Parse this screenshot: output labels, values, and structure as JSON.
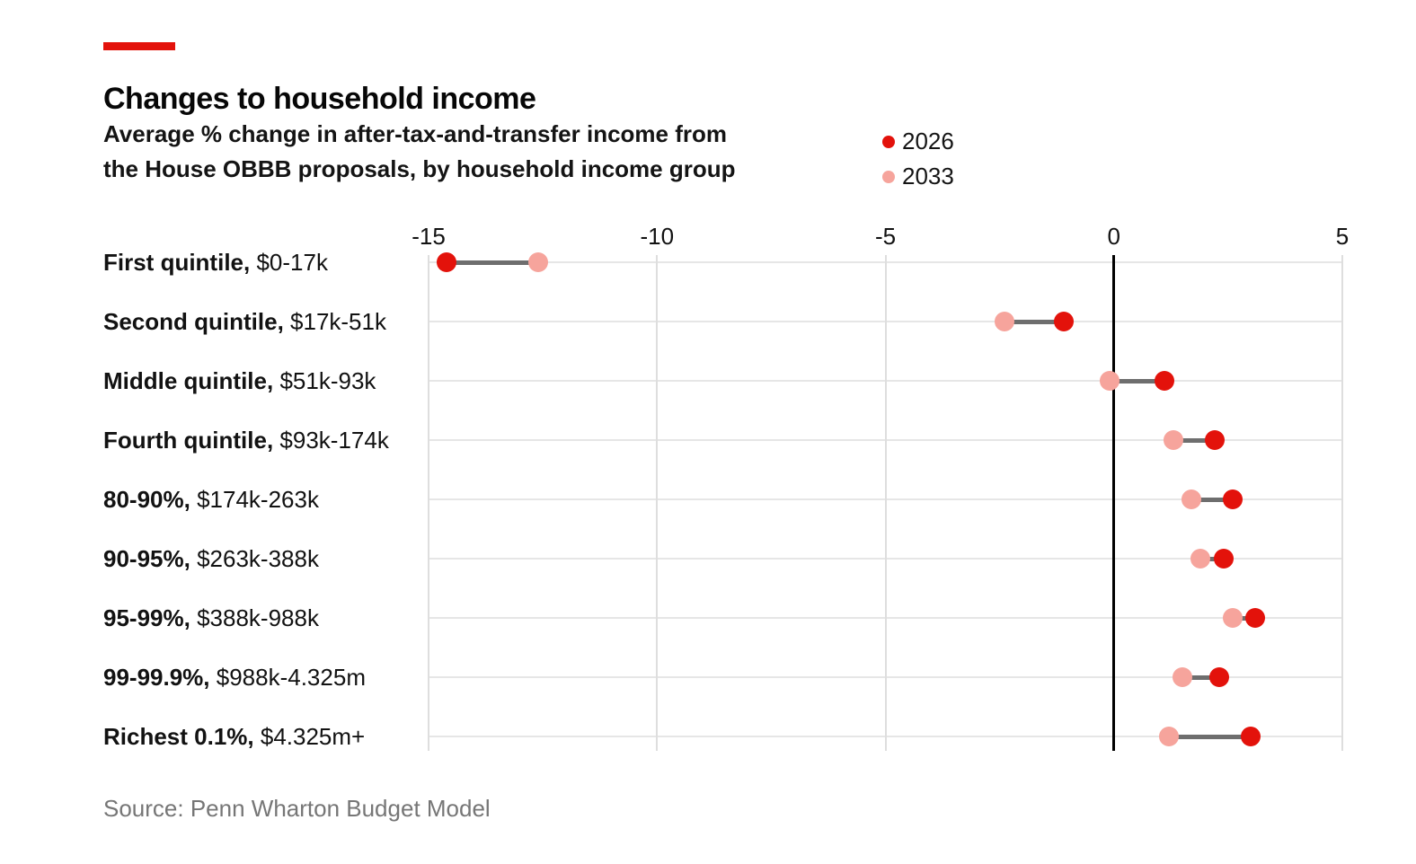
{
  "accent_color": "#e3120b",
  "header": {
    "title": "Changes to household income",
    "subtitle_line1": "Average % change in after-tax-and-transfer income from",
    "subtitle_line2": "the House OBBB proposals, by household income group"
  },
  "legend": [
    {
      "label": "2026",
      "color": "#e3120b"
    },
    {
      "label": "2033",
      "color": "#f6a49c"
    }
  ],
  "chart_data": {
    "type": "scatter",
    "subtype": "dumbbell-dot-plot",
    "title": "Changes to household income",
    "xlabel": "Average % change in after-tax-and-transfer income",
    "ylabel": "Household income group",
    "xlim": [
      -15,
      5
    ],
    "x_ticks": [
      -15,
      -10,
      -5,
      0,
      5
    ],
    "grid": true,
    "legend_position": "top-right",
    "zero_line": true,
    "categories": [
      {
        "group": "First quintile,",
        "range": "$0-17k"
      },
      {
        "group": "Second quintile,",
        "range": "$17k-51k"
      },
      {
        "group": "Middle quintile,",
        "range": "$51k-93k"
      },
      {
        "group": "Fourth quintile,",
        "range": "$93k-174k"
      },
      {
        "group": "80-90%,",
        "range": "$174k-263k"
      },
      {
        "group": "90-95%,",
        "range": "$263k-388k"
      },
      {
        "group": "95-99%,",
        "range": "$388k-988k"
      },
      {
        "group": "99-99.9%,",
        "range": "$988k-4.325m"
      },
      {
        "group": "Richest 0.1%,",
        "range": "$4.325m+"
      }
    ],
    "series": [
      {
        "name": "2026",
        "color": "#e3120b",
        "values": [
          -14.6,
          -1.1,
          1.1,
          2.2,
          2.6,
          2.4,
          3.1,
          2.3,
          3.0
        ]
      },
      {
        "name": "2033",
        "color": "#f6a49c",
        "values": [
          -12.6,
          -2.4,
          -0.1,
          1.3,
          1.7,
          1.9,
          2.6,
          1.5,
          1.2
        ]
      }
    ],
    "connector_color": "#6e6e6e",
    "gridline_color": "#dedede",
    "row_line_color": "#e6e6e6"
  },
  "source": "Source: Penn Wharton Budget Model"
}
